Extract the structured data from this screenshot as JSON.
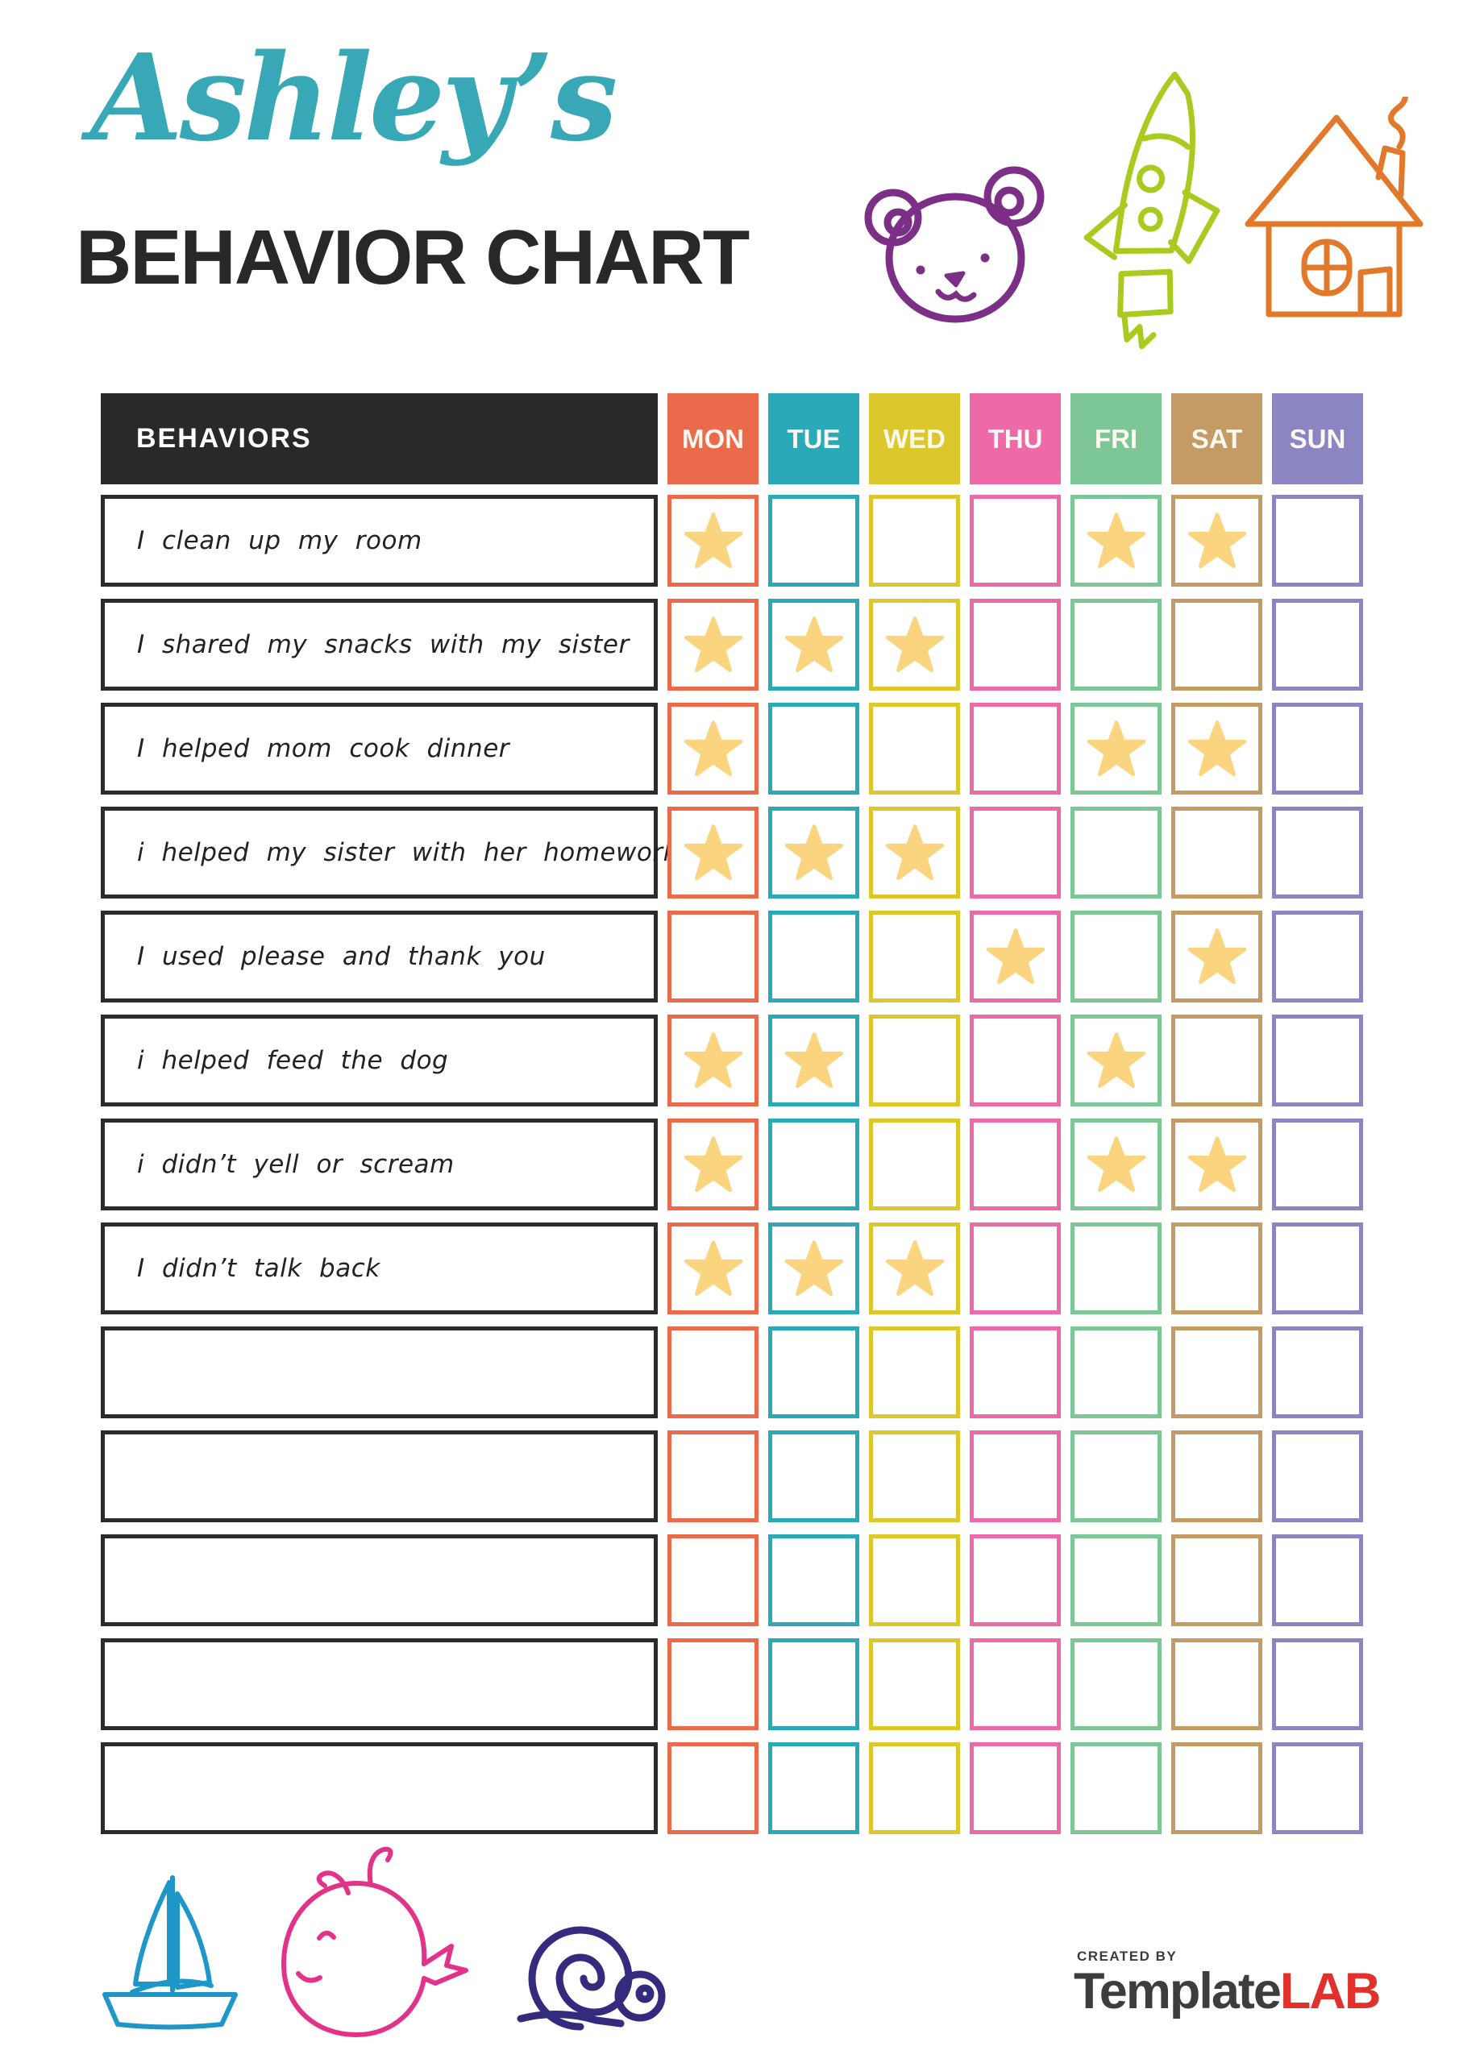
{
  "page": {
    "title_script": "Ashley’s",
    "title_main": "BEHAVIOR CHART"
  },
  "table": {
    "behaviors_header": "BEHAVIORS",
    "header_bg": "#29292b",
    "row_border": "#2b2b2b",
    "star_color": "#fad47e",
    "days": [
      {
        "label": "MON",
        "color": "#ec6a4c"
      },
      {
        "label": "TUE",
        "color": "#2aa9b8"
      },
      {
        "label": "WED",
        "color": "#dcc72c"
      },
      {
        "label": "THU",
        "color": "#ee69a8"
      },
      {
        "label": "FRI",
        "color": "#7cc795"
      },
      {
        "label": "SAT",
        "color": "#c49b64"
      },
      {
        "label": "SUN",
        "color": "#8b85c2"
      }
    ],
    "rows": [
      {
        "label": "I clean up my room",
        "stars": [
          "MON",
          "FRI",
          "SAT"
        ]
      },
      {
        "label": "I shared my snacks with my sister",
        "stars": [
          "MON",
          "TUE",
          "WED"
        ]
      },
      {
        "label": "I helped mom cook dinner",
        "stars": [
          "MON",
          "FRI",
          "SAT"
        ]
      },
      {
        "label": "i helped my sister with her homework",
        "stars": [
          "MON",
          "TUE",
          "WED"
        ]
      },
      {
        "label": "I used please and thank you",
        "stars": [
          "THU",
          "SAT"
        ]
      },
      {
        "label": "i helped feed the dog",
        "stars": [
          "MON",
          "TUE",
          "FRI"
        ]
      },
      {
        "label": "i didn’t yell or scream",
        "stars": [
          "MON",
          "FRI",
          "SAT"
        ]
      },
      {
        "label": "I didn’t talk back",
        "stars": [
          "MON",
          "TUE",
          "WED"
        ]
      },
      {
        "label": "",
        "stars": []
      },
      {
        "label": "",
        "stars": []
      },
      {
        "label": "",
        "stars": []
      },
      {
        "label": "",
        "stars": []
      },
      {
        "label": "",
        "stars": []
      }
    ]
  },
  "decorations": {
    "top": [
      "bear-doodle",
      "rocket-doodle",
      "house-doodle"
    ],
    "bottom": [
      "sailboat-doodle",
      "whale-doodle",
      "snail-doodle"
    ],
    "colors": {
      "bear": "#7d2e86",
      "rocket": "#a9cb20",
      "house": "#e2792a",
      "boat": "#1e96c8",
      "whale": "#e23389",
      "snail": "#342a7e"
    }
  },
  "footer": {
    "created_by": "CREATED BY",
    "brand_template": "Template",
    "brand_lab": "LAB",
    "brand_color_dark": "#3d3d3d",
    "brand_color_red": "#e2302c"
  }
}
